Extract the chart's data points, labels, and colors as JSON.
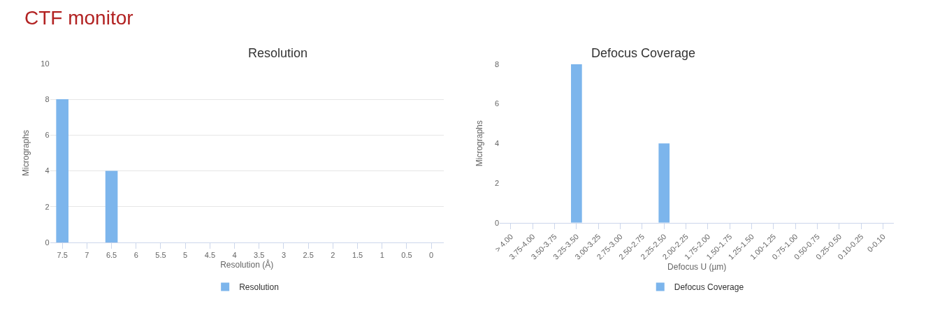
{
  "chart_data": [
    {
      "type": "bar",
      "title": "Resolution",
      "xlabel": "Resolution (Å)",
      "ylabel": "Micrographs",
      "annotations": [
        "CTF monitor"
      ],
      "categories": [
        "7.5",
        "7",
        "6.5",
        "6",
        "5.5",
        "5",
        "4.5",
        "4",
        "3.5",
        "3",
        "2.5",
        "2",
        "1.5",
        "1",
        "0.5",
        "0"
      ],
      "series": [
        {
          "name": "Resolution",
          "color": "#7cb5ec",
          "values": [
            8,
            0,
            4,
            0,
            0,
            0,
            0,
            0,
            0,
            0,
            0,
            0,
            0,
            0,
            0,
            0
          ]
        }
      ],
      "ylim": [
        0,
        10
      ],
      "yticks": [
        0,
        2,
        4,
        6,
        8,
        10
      ],
      "grid": "y",
      "legend": "bottom"
    },
    {
      "type": "bar",
      "title": "Defocus Coverage",
      "xlabel": "Defocus U (µm)",
      "ylabel": "Micrographs",
      "categories": [
        "> 4.00",
        "3.75-4.00",
        "3.50-3.75",
        "3.25-3.50",
        "3.00-3.25",
        "2.75-3.00",
        "2.50-2.75",
        "2.25-2.50",
        "2.00-2.25",
        "1.75-2.00",
        "1.50-1.75",
        "1.25-1.50",
        "1.00-1.25",
        "0.75-1.00",
        "0.50-0.75",
        "0.25-0.50",
        "0.10-0.25",
        "0-0.10"
      ],
      "series": [
        {
          "name": "Defocus Coverage",
          "color": "#7cb5ec",
          "values": [
            0,
            0,
            0,
            8,
            0,
            0,
            0,
            4,
            0,
            0,
            0,
            0,
            0,
            0,
            0,
            0,
            0,
            0
          ]
        }
      ],
      "ylim": [
        0,
        8
      ],
      "yticks": [
        0,
        2,
        4,
        6,
        8
      ],
      "legend": "bottom"
    }
  ]
}
